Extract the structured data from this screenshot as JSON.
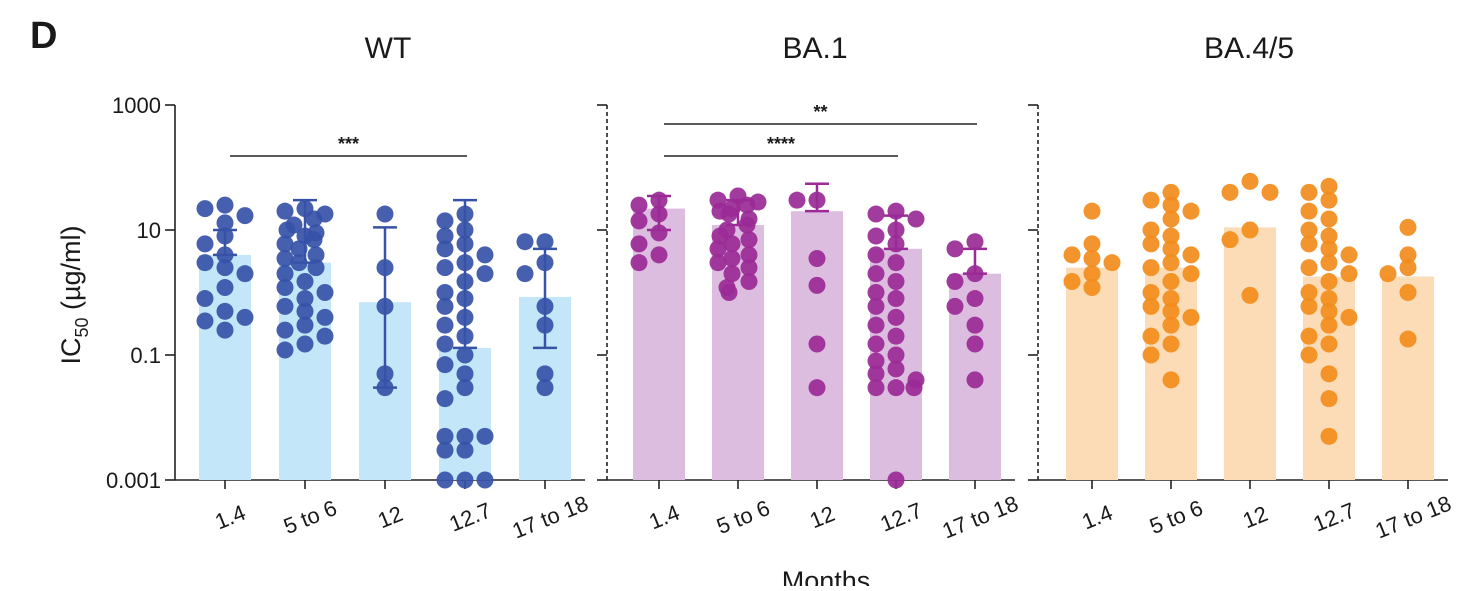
{
  "figure": {
    "panel_letter": "D",
    "xlabel": "Months",
    "ylabel_main": "IC",
    "ylabel_sub": "50",
    "ylabel_unit": " (µg/ml)"
  },
  "chart_data": [
    {
      "type": "bar",
      "title": "WT",
      "scale": "log10",
      "ylim": [
        0.001,
        1000
      ],
      "yticks": [
        "1000",
        "10",
        "0.1",
        "0.001"
      ],
      "categories": [
        "1.4",
        "5 to 6",
        "12",
        "12.7",
        "17 to 18"
      ],
      "bar_color": "#c3e6f8",
      "point_color": "#3653a8",
      "bars": [
        4.0,
        3.0,
        0.7,
        0.13,
        0.85
      ],
      "error_high": [
        10,
        30,
        11,
        30,
        5
      ],
      "error_low": [
        4.0,
        3.0,
        0.03,
        0.13,
        0.13
      ],
      "points": [
        [
          25,
          22,
          17,
          13,
          8,
          6,
          4,
          3,
          2.5,
          2,
          1.2,
          0.8,
          0.5,
          0.35,
          0.25,
          0.4
        ],
        [
          22,
          20,
          18,
          15,
          12,
          10,
          9,
          8,
          7,
          6,
          5,
          4,
          3.5,
          3,
          2.5,
          2,
          1.5,
          1.2,
          1,
          0.8,
          0.6,
          0.5,
          0.4,
          0.3,
          0.25,
          0.2,
          0.15,
          0.12
        ],
        [
          18,
          2.5,
          0.6,
          0.05,
          0.03
        ],
        [
          18,
          14,
          10,
          8,
          6,
          5,
          4,
          3,
          2.5,
          2,
          1.5,
          1,
          0.8,
          0.6,
          0.4,
          0.3,
          0.2,
          0.15,
          0.1,
          0.07,
          0.05,
          0.03,
          0.02,
          0.005,
          0.005,
          0.005,
          0.003,
          0.003,
          0.001,
          0.001,
          0.001
        ],
        [
          6.5,
          6.5,
          3,
          2,
          0.6,
          0.3,
          0.05,
          0.03
        ]
      ],
      "significance": [
        {
          "from": 0,
          "to": 3,
          "label": "***",
          "level": 1
        }
      ]
    },
    {
      "type": "bar",
      "title": "BA.1",
      "scale": "log10",
      "ylim": [
        0.001,
        1000
      ],
      "categories": [
        "1.4",
        "5 to 6",
        "12",
        "12.7",
        "17 to 18"
      ],
      "bar_color": "#dcbde0",
      "point_color": "#9a2a96",
      "bars": [
        22,
        12,
        20,
        5,
        2
      ],
      "error_high": [
        35,
        30,
        55,
        17,
        5
      ],
      "error_low": [
        10,
        12,
        20,
        5,
        2
      ],
      "points": [
        [
          30,
          25,
          18,
          14,
          9,
          6,
          4,
          3
        ],
        [
          35,
          30,
          28,
          25,
          22,
          20,
          18,
          15,
          12,
          10,
          8,
          7,
          6,
          5,
          4,
          3.5,
          3,
          2.5,
          2,
          1.5,
          1.2,
          1
        ],
        [
          30,
          30,
          3.5,
          1.3,
          0.15,
          0.03
        ],
        [
          20,
          18,
          15,
          10,
          8,
          6,
          4,
          3,
          2,
          1.5,
          1,
          0.8,
          0.6,
          0.4,
          0.3,
          0.2,
          0.15,
          0.1,
          0.08,
          0.06,
          0.05,
          0.04,
          0.03,
          0.03,
          0.03,
          0.001
        ],
        [
          6.5,
          5,
          2,
          1.5,
          0.8,
          0.6,
          0.3,
          0.15,
          0.04
        ]
      ],
      "significance": [
        {
          "from": 0,
          "to": 4,
          "label": "**",
          "level": 2
        },
        {
          "from": 0,
          "to": 3,
          "label": "****",
          "level": 1
        }
      ]
    },
    {
      "type": "bar",
      "title": "BA.4/5",
      "scale": "log10",
      "ylim": [
        0.001,
        1000
      ],
      "categories": [
        "1.4",
        "5 to 6",
        "12",
        "12.7",
        "17 to 18"
      ],
      "bar_color": "#fbdcb6",
      "point_color": "#f28c1c",
      "bars": [
        2.5,
        2.5,
        11,
        1.8,
        1.8
      ],
      "error_high": [],
      "error_low": [],
      "points": [
        [
          20,
          6,
          4,
          3.5,
          3,
          2,
          1.5,
          1.2
        ],
        [
          40,
          30,
          25,
          20,
          15,
          10,
          8,
          6,
          5,
          4,
          3,
          2.5,
          2,
          1.5,
          1,
          0.8,
          0.6,
          0.5,
          0.4,
          0.3,
          0.2,
          0.15,
          0.1,
          0.04
        ],
        [
          60,
          40,
          40,
          10,
          7,
          0.9
        ],
        [
          50,
          40,
          30,
          20,
          15,
          10,
          8,
          6,
          5,
          4,
          3,
          2.5,
          2,
          1.5,
          1,
          0.8,
          0.6,
          0.5,
          0.4,
          0.3,
          0.2,
          0.15,
          0.1,
          0.05,
          0.02,
          0.005
        ],
        [
          11,
          4,
          2.5,
          2,
          1,
          0.18
        ]
      ],
      "significance": []
    }
  ]
}
